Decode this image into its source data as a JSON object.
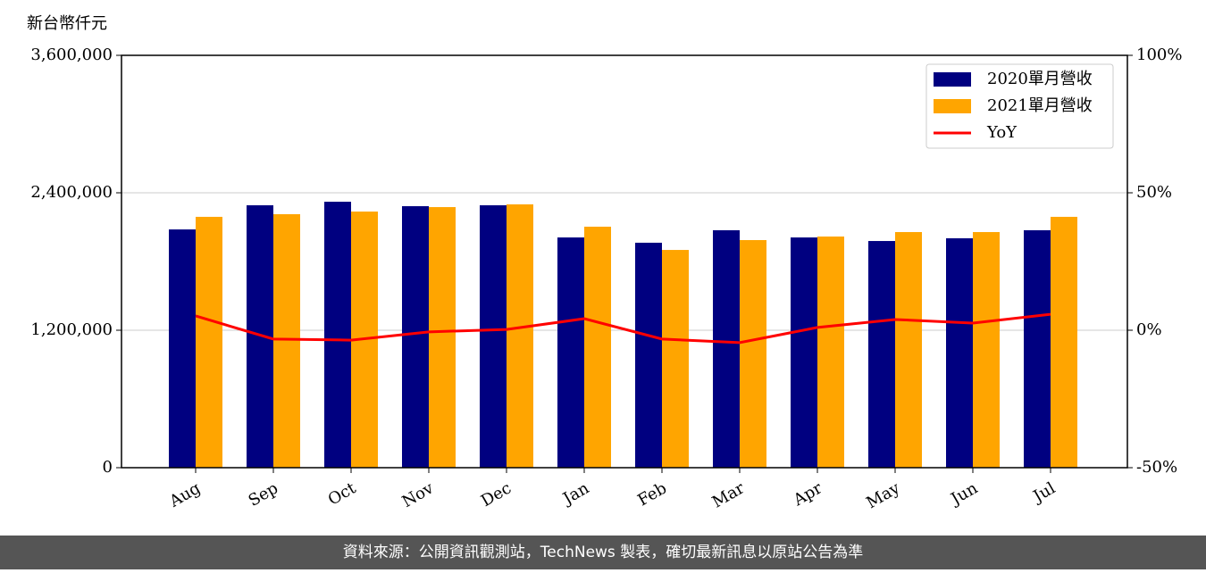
{
  "chart_data": {
    "type": "bar",
    "y_label": "新台幣仟元",
    "categories": [
      "Aug",
      "Sep",
      "Oct",
      "Nov",
      "Dec",
      "Jan",
      "Feb",
      "Mar",
      "Apr",
      "May",
      "Jun",
      "Jul"
    ],
    "series": [
      {
        "name": "2020單月營收",
        "color": "#000080",
        "values": [
          2080000,
          2291000,
          2322000,
          2283000,
          2291000,
          2010000,
          1964000,
          2073000,
          2010000,
          1979000,
          2003000,
          2073000
        ]
      },
      {
        "name": "2021單月營收",
        "color": "#ffa500",
        "values": [
          2190000,
          2213000,
          2236000,
          2275000,
          2299000,
          2104000,
          1901000,
          1987000,
          2018000,
          2057000,
          2057000,
          2190000
        ]
      },
      {
        "name": "YoY",
        "type": "line",
        "axis": "y2",
        "color": "#ff0000",
        "values": [
          5.2,
          -3.2,
          -3.6,
          -0.6,
          0.3,
          4.2,
          -3.2,
          -4.5,
          1.0,
          3.9,
          2.6,
          5.8
        ]
      }
    ],
    "ylim": [
      0,
      3600000
    ],
    "yticks": [
      0,
      {
        "value": 1200000,
        "label": "1,200,000"
      },
      {
        "value": 2400000,
        "label": "2,400,000"
      },
      {
        "value": 3600000,
        "label": "3,600,000"
      }
    ],
    "y2lim": [
      -50,
      100
    ],
    "y2ticks": [
      {
        "value": -50,
        "label": "-50%"
      },
      {
        "value": 0,
        "label": "0%"
      },
      {
        "value": 50,
        "label": "50%"
      },
      {
        "value": 100,
        "label": "100%"
      }
    ],
    "grid": true,
    "legend": "upper right",
    "source": "資料來源：公開資訊觀測站，TechNews 製表，確切最新訊息以原站公告為準"
  }
}
